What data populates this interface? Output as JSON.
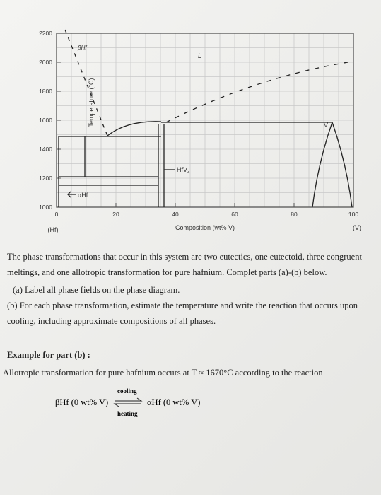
{
  "diagram": {
    "y_label": "Temperature (°C)",
    "x_label": "Composition (wt% V)",
    "left_end": "(Hf)",
    "right_end": "(V)",
    "y_ticks": [
      2200,
      2000,
      1800,
      1600,
      1400,
      1200,
      1000
    ],
    "x_ticks": [
      0,
      20,
      40,
      60,
      80,
      100
    ],
    "phase_labels": [
      "βHf",
      "L",
      "V",
      "HfV₂",
      "αHf"
    ]
  },
  "text": {
    "intro": "The phase transformations that occur in this system are two eutectics, one eutectoid, three congruent meltings, and one allotropic transformation for pure hafnium. Complet parts (a)-(b) below.",
    "part_a": "(a) Label all phase fields on the phase diagram.",
    "part_b": "(b) For each phase transformation, estimate the temperature and write the reaction that occurs upon cooling, including approximate compositions of all phases.",
    "example_heading": "Example for part (b) :",
    "example_text": "Allotropic transformation for pure hafnium occurs at T ≈ 1670°C according to the reaction",
    "reaction": {
      "reactant": "βHf (0 wt% V)",
      "top": "cooling",
      "bottom": "heating",
      "product": "αHf (0 wt% V)"
    }
  }
}
